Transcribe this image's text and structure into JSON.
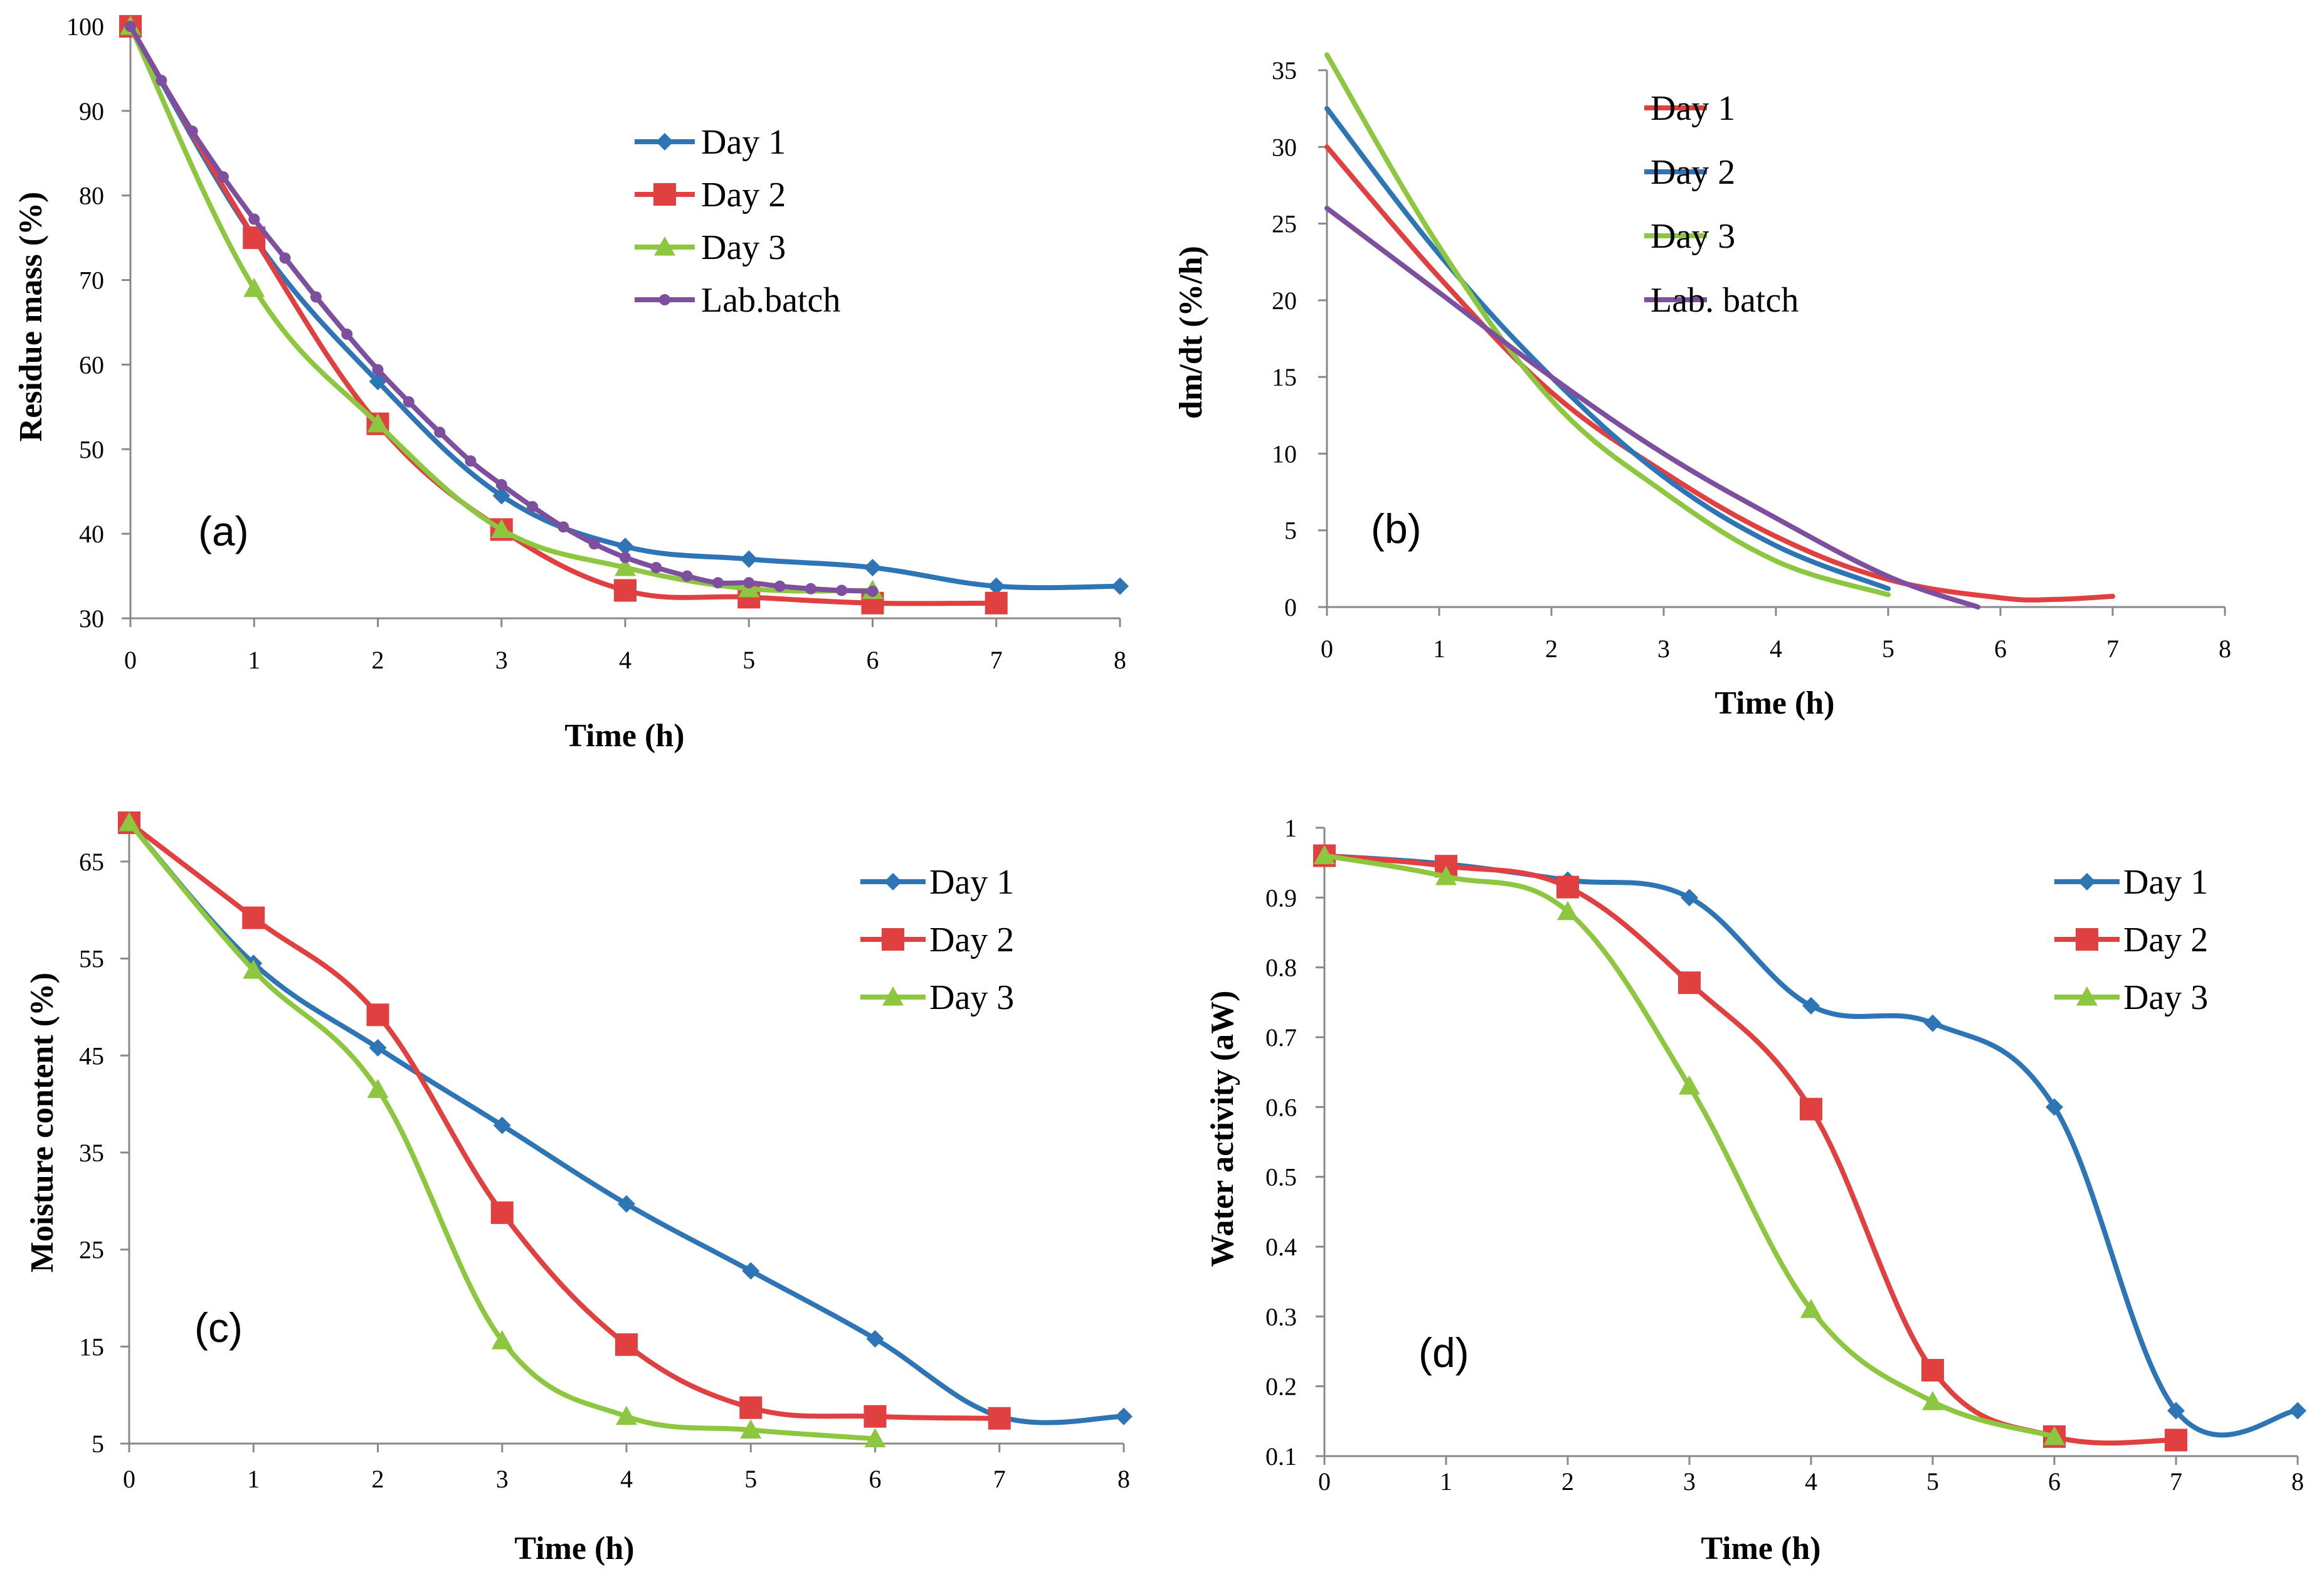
{
  "chart_data": [
    {
      "id": "a",
      "type": "line",
      "panel_label": "(a)",
      "xlabel": "Time  (h)",
      "ylabel": "Residue mass (%)",
      "xlim": [
        0,
        8
      ],
      "ylim": [
        30,
        100
      ],
      "xticks": [
        0,
        1,
        2,
        3,
        4,
        5,
        6,
        7,
        8
      ],
      "yticks": [
        30,
        40,
        50,
        60,
        70,
        80,
        90,
        100
      ],
      "legend_position": "top-right",
      "series": [
        {
          "name": "Day 1",
          "color": "#2E75B6",
          "marker": "diamond",
          "x": [
            0,
            1,
            2,
            3,
            4,
            5,
            6,
            7,
            8
          ],
          "y": [
            100,
            75,
            58,
            44.5,
            38.5,
            37,
            36,
            33.8,
            33.8
          ]
        },
        {
          "name": "Day 2",
          "color": "#E04040",
          "marker": "square",
          "x": [
            0,
            1,
            2,
            3,
            4,
            5,
            6,
            7
          ],
          "y": [
            100,
            75,
            53,
            40.5,
            33.3,
            32.5,
            31.8,
            31.8
          ]
        },
        {
          "name": "Day 3",
          "color": "#8DC63F",
          "marker": "triangle",
          "x": [
            0,
            1,
            2,
            3,
            4,
            5,
            6
          ],
          "y": [
            100,
            69,
            53,
            40.5,
            36,
            33.5,
            33.3
          ]
        },
        {
          "name": "Lab.batch",
          "color": "#7F4F9F",
          "marker": "dot",
          "x": [
            0,
            0.25,
            0.5,
            0.75,
            1,
            1.25,
            1.5,
            1.75,
            2,
            2.25,
            2.5,
            2.75,
            3,
            3.25,
            3.5,
            3.75,
            4,
            4.25,
            4.5,
            4.75,
            5,
            5.25,
            5.5,
            5.75,
            6
          ],
          "y": [
            100,
            93.6,
            87.6,
            82.2,
            77.2,
            72.6,
            68.0,
            63.6,
            59.4,
            55.6,
            52.0,
            48.6,
            45.8,
            43.2,
            40.8,
            38.8,
            37.2,
            36.0,
            35.0,
            34.2,
            34.2,
            33.8,
            33.5,
            33.3,
            33.2
          ]
        }
      ]
    },
    {
      "id": "b",
      "type": "line",
      "panel_label": "(b)",
      "xlabel": "Time  (h)",
      "ylabel": "dm/dt  (%/h)",
      "xlim": [
        0,
        8
      ],
      "ylim": [
        0,
        35
      ],
      "xticks": [
        0,
        1,
        2,
        3,
        4,
        5,
        6,
        7,
        8
      ],
      "yticks": [
        0,
        5,
        10,
        15,
        20,
        25,
        30,
        35
      ],
      "legend_position": "top-center",
      "series": [
        {
          "name": "Day 1",
          "color": "#E04040",
          "marker": "none",
          "x": [
            0,
            1,
            2,
            3,
            4,
            5,
            6,
            6.5,
            7
          ],
          "y": [
            30,
            21.5,
            14,
            8.8,
            4.6,
            1.8,
            0.6,
            0.5,
            0.7
          ]
        },
        {
          "name": "Day 2",
          "color": "#2E75B6",
          "marker": "none",
          "x": [
            0,
            1,
            2,
            3,
            4,
            5
          ],
          "y": [
            32.5,
            23,
            15,
            8.5,
            4,
            1.2
          ]
        },
        {
          "name": "Day 3",
          "color": "#8DC63F",
          "marker": "none",
          "x": [
            0,
            1,
            2,
            3,
            4,
            5
          ],
          "y": [
            36,
            23.5,
            13.5,
            7.5,
            3,
            0.8
          ]
        },
        {
          "name": "Lab. batch",
          "color": "#7F4F9F",
          "marker": "none",
          "x": [
            0,
            1,
            2,
            3,
            4,
            5,
            5.8
          ],
          "y": [
            26,
            20.5,
            15,
            10,
            5.8,
            2,
            0
          ]
        }
      ]
    },
    {
      "id": "c",
      "type": "line",
      "panel_label": "(c)",
      "xlabel": "Time  (h)",
      "ylabel": "Moisture content (%)",
      "xlim": [
        0,
        8
      ],
      "ylim": [
        5,
        69
      ],
      "xticks": [
        0,
        1,
        2,
        3,
        4,
        5,
        6,
        7,
        8
      ],
      "yticks": [
        5,
        15,
        25,
        35,
        45,
        55,
        65
      ],
      "legend_position": "top-right",
      "series": [
        {
          "name": "Day 1",
          "color": "#2E75B6",
          "marker": "diamond",
          "x": [
            0,
            1,
            2,
            3,
            4,
            5,
            6,
            7,
            8
          ],
          "y": [
            69,
            54.5,
            45.8,
            37.8,
            29.7,
            22.8,
            15.8,
            7.8,
            7.8
          ]
        },
        {
          "name": "Day 2",
          "color": "#E04040",
          "marker": "square",
          "x": [
            0,
            1,
            2,
            3,
            4,
            5,
            6,
            7
          ],
          "y": [
            69,
            59.2,
            49.2,
            28.8,
            15.2,
            8.7,
            7.8,
            7.6
          ]
        },
        {
          "name": "Day 3",
          "color": "#8DC63F",
          "marker": "triangle",
          "x": [
            0,
            1,
            2,
            3,
            4,
            5,
            6
          ],
          "y": [
            69,
            53.8,
            41.5,
            15.6,
            7.8,
            6.4,
            5.5
          ]
        }
      ]
    },
    {
      "id": "d",
      "type": "line",
      "panel_label": "(d)",
      "xlabel": "Time  (h)",
      "ylabel": "Water activity (aW)",
      "xlim": [
        0,
        8
      ],
      "ylim": [
        0.1,
        1
      ],
      "xticks": [
        0,
        1,
        2,
        3,
        4,
        5,
        6,
        7,
        8
      ],
      "yticks": [
        0.1,
        0.2,
        0.3,
        0.4,
        0.5,
        0.6,
        0.7,
        0.8,
        0.9,
        1
      ],
      "legend_position": "top-right",
      "series": [
        {
          "name": "Day 1",
          "color": "#2E75B6",
          "marker": "diamond",
          "x": [
            0,
            1,
            2,
            3,
            4,
            5,
            6,
            7,
            8
          ],
          "y": [
            0.96,
            0.948,
            0.925,
            0.9,
            0.745,
            0.72,
            0.6,
            0.165,
            0.165
          ]
        },
        {
          "name": "Day 2",
          "color": "#E04040",
          "marker": "square",
          "x": [
            0,
            1,
            2,
            3,
            4,
            5,
            6,
            7
          ],
          "y": [
            0.96,
            0.945,
            0.915,
            0.778,
            0.597,
            0.223,
            0.128,
            0.123
          ]
        },
        {
          "name": "Day 3",
          "color": "#8DC63F",
          "marker": "triangle",
          "x": [
            0,
            1,
            2,
            3,
            4,
            5,
            6
          ],
          "y": [
            0.96,
            0.93,
            0.88,
            0.63,
            0.31,
            0.178,
            0.128
          ]
        }
      ]
    }
  ]
}
